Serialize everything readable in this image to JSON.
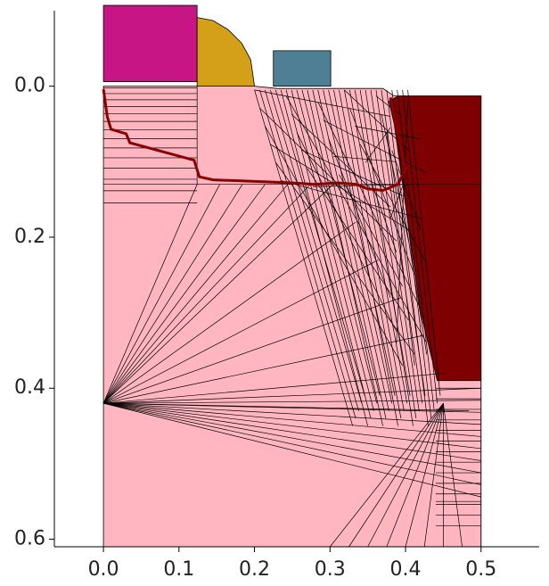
{
  "chart_data": {
    "type": "mesh",
    "xlim": [
      -0.065,
      0.577
    ],
    "ylim": [
      -0.1,
      0.61
    ],
    "y_inverted": true,
    "xticks": [
      {
        "value": 0,
        "label": "0.0"
      },
      0.1,
      0.2,
      0.3,
      0.4,
      0.5
    ],
    "yticks": [
      {
        "value": 0,
        "label": "0.0"
      },
      0.2,
      0.4,
      0.6
    ],
    "regions": [
      {
        "color": "#ffb6c1",
        "points": [
          [
            0,
            0.0
          ],
          [
            0.2,
            0.0
          ],
          [
            0.23,
            0.003
          ],
          [
            0.37,
            0.003
          ],
          [
            0.385,
            0.013
          ],
          [
            0.5,
            0.013
          ],
          [
            0.5,
            0.61
          ],
          [
            0,
            0.61
          ]
        ]
      },
      {
        "color": "#c71585",
        "points": [
          [
            0,
            -0.107
          ],
          [
            0.124,
            -0.107
          ],
          [
            0.124,
            -0.006
          ],
          [
            0,
            -0.006
          ]
        ]
      },
      {
        "color": "#d4a017",
        "points": [
          [
            0.124,
            -0.091
          ],
          [
            0.145,
            -0.087
          ],
          [
            0.165,
            -0.075
          ],
          [
            0.183,
            -0.057
          ],
          [
            0.195,
            -0.035
          ],
          [
            0.2,
            0.0
          ],
          [
            0.124,
            0.0
          ]
        ]
      },
      {
        "color": "#4f7f94",
        "points": [
          [
            0.225,
            -0.047
          ],
          [
            0.301,
            -0.047
          ],
          [
            0.301,
            0.0
          ],
          [
            0.225,
            0.0
          ]
        ]
      },
      {
        "color": "#7f0000",
        "points": [
          [
            0.39,
            0.013
          ],
          [
            0.5,
            0.013
          ],
          [
            0.5,
            0.39
          ],
          [
            0.442,
            0.39
          ],
          [
            0.42,
            0.3
          ],
          [
            0.385,
            0.05
          ],
          [
            0.378,
            0.02
          ]
        ]
      }
    ],
    "junction": {
      "color": "#8b0000",
      "points": [
        [
          0,
          0.004
        ],
        [
          0.005,
          0.04
        ],
        [
          0.01,
          0.057
        ],
        [
          0.03,
          0.063
        ],
        [
          0.035,
          0.075
        ],
        [
          0.12,
          0.098
        ],
        [
          0.127,
          0.12
        ],
        [
          0.145,
          0.124
        ],
        [
          0.25,
          0.128
        ],
        [
          0.28,
          0.13
        ],
        [
          0.31,
          0.128
        ],
        [
          0.335,
          0.13
        ],
        [
          0.35,
          0.136
        ],
        [
          0.37,
          0.138
        ],
        [
          0.39,
          0.13
        ],
        [
          0.4,
          0.11
        ],
        [
          0.38,
          0.015
        ]
      ]
    }
  }
}
